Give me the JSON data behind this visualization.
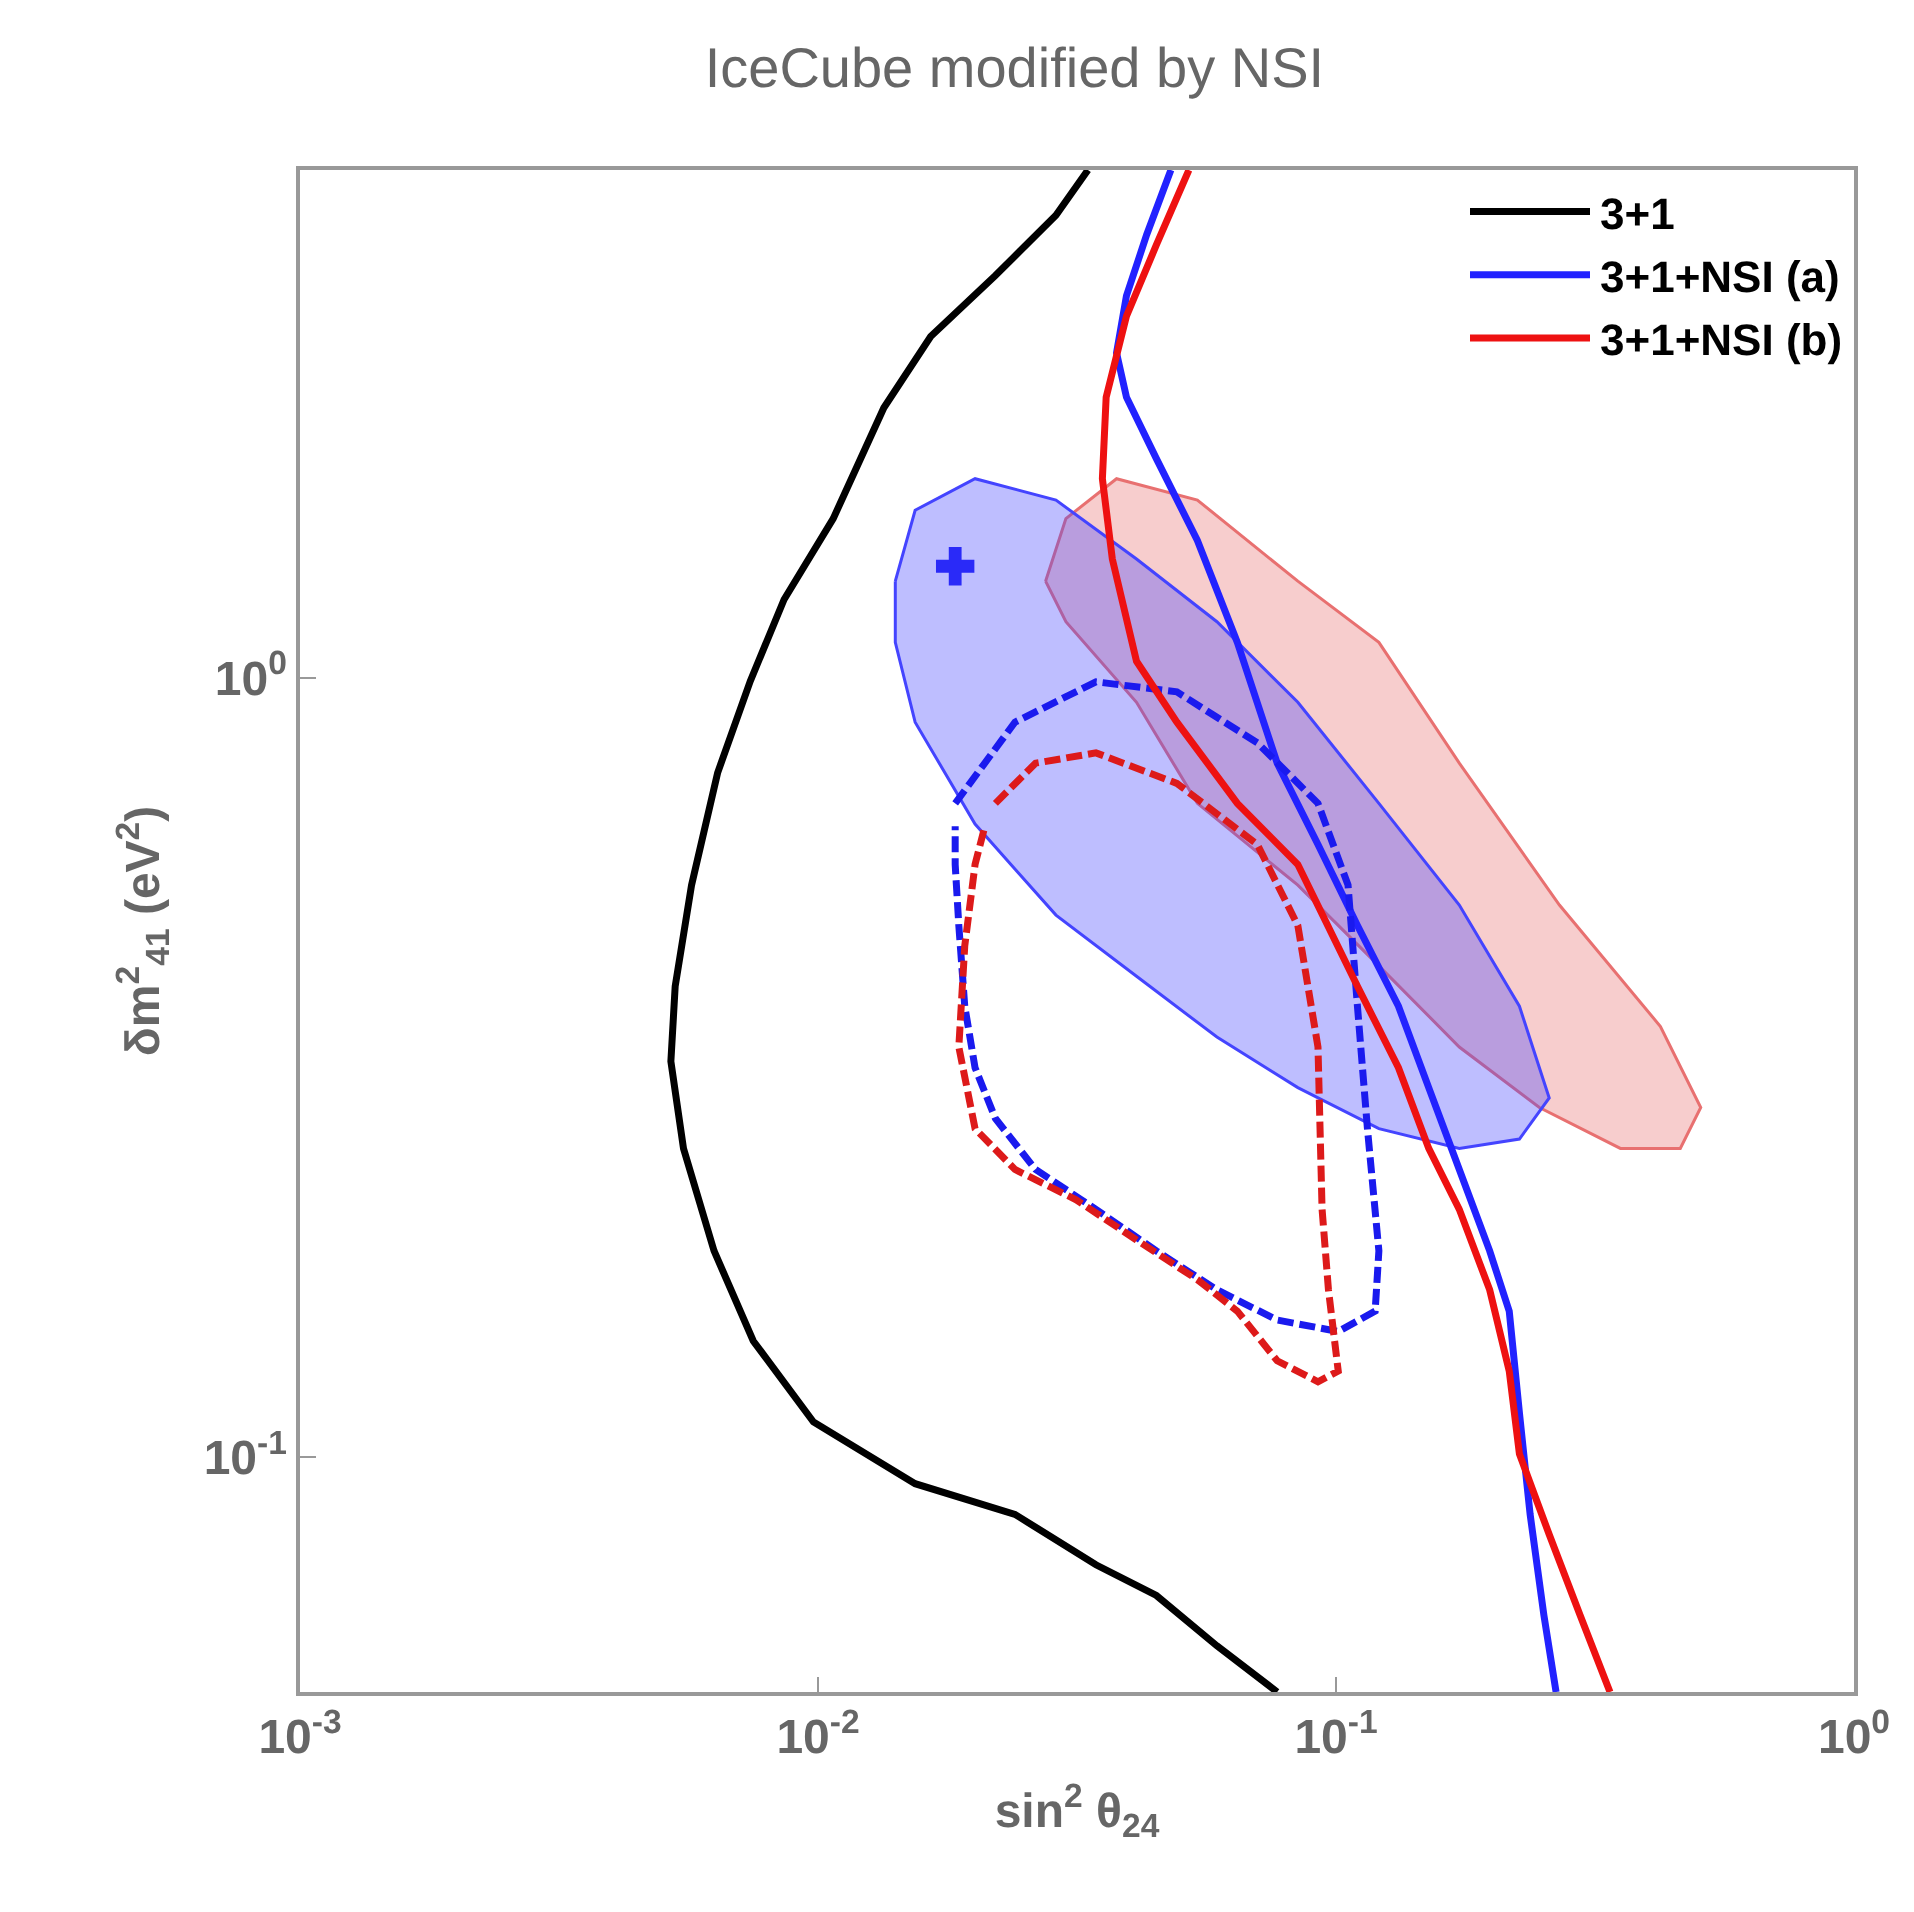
{
  "chart_data": {
    "type": "line",
    "title": "IceCube modified by NSI",
    "xlabel": "sin$^{2}$ θ$_{24}$",
    "ylabel": "δm$^{2}$$_{41}$ (eV$^{2}$)",
    "log": "xy",
    "legend": "top right",
    "xlim": [
      0.001,
      1
    ],
    "ylim": [
      0.05,
      4.48
    ],
    "xticks": [
      {
        "value": 0.001,
        "label": "10$^{-3}$"
      },
      {
        "value": 0.01,
        "label": "10$^{-2}$"
      },
      {
        "value": 0.1,
        "label": "10$^{-1}$"
      },
      {
        "value": 1,
        "label": "10$^{0}$"
      }
    ],
    "yticks": [
      {
        "value": 0.1,
        "label": "10$^{-1}$"
      },
      {
        "value": 1,
        "label": "10$^{0}$"
      }
    ],
    "series": [
      {
        "type": "area",
        "color": "#e87070",
        "x": [
          0.0275,
          0.0301,
          0.0377,
          0.054,
          0.0844,
          0.121,
          0.173,
          0.27,
          0.423,
          0.506,
          0.462,
          0.354,
          0.247,
          0.173,
          0.121,
          0.0844,
          0.054,
          0.0412,
          0.0301,
          0.0275
        ],
        "values": [
          1.33,
          1.6,
          1.8,
          1.69,
          1.33,
          1.11,
          0.777,
          0.511,
          0.357,
          0.281,
          0.249,
          0.249,
          0.281,
          0.336,
          0.427,
          0.542,
          0.69,
          0.93,
          1.18,
          1.33
        ]
      },
      {
        "type": "area",
        "color": "#4444ff",
        "x": [
          0.0141,
          0.0154,
          0.0201,
          0.0288,
          0.0412,
          0.0589,
          0.0844,
          0.121,
          0.173,
          0.226,
          0.258,
          0.226,
          0.173,
          0.121,
          0.0844,
          0.0589,
          0.0412,
          0.0288,
          0.0201,
          0.0154,
          0.0141,
          0.0141
        ],
        "values": [
          1.33,
          1.64,
          1.8,
          1.69,
          1.42,
          1.18,
          0.93,
          0.69,
          0.511,
          0.379,
          0.289,
          0.256,
          0.249,
          0.264,
          0.298,
          0.346,
          0.414,
          0.496,
          0.649,
          0.877,
          1.11,
          1.33
        ]
      },
      {
        "name": "3+1",
        "color": "#000000",
        "line_style": "solid",
        "x": [
          0.0332,
          0.0288,
          0.022,
          0.0165,
          0.0134,
          0.0107,
          0.0086,
          0.0074,
          0.0064,
          0.0057,
          0.0053,
          0.0052,
          0.0055,
          0.0063,
          0.0075,
          0.0098,
          0.0154,
          0.024,
          0.0344,
          0.045,
          0.0589,
          0.077
        ],
        "values": [
          4.48,
          3.92,
          3.28,
          2.74,
          2.22,
          1.6,
          1.26,
          0.99,
          0.755,
          0.542,
          0.402,
          0.322,
          0.249,
          0.184,
          0.141,
          0.111,
          0.0925,
          0.0845,
          0.0728,
          0.0665,
          0.0573,
          0.05
        ]
      },
      {
        "name": "3+1+NSI (a)",
        "color": "#2222ff",
        "line_style": "solid",
        "x": [
          0.048,
          0.0431,
          0.0394,
          0.0377,
          0.0394,
          0.045,
          0.054,
          0.0645,
          0.077,
          0.0923,
          0.11,
          0.132,
          0.151,
          0.173,
          0.198,
          0.216,
          0.226,
          0.237,
          0.252,
          0.266
        ],
        "values": [
          4.48,
          3.7,
          3.09,
          2.61,
          2.29,
          1.91,
          1.5,
          1.11,
          0.777,
          0.611,
          0.481,
          0.379,
          0.298,
          0.234,
          0.184,
          0.154,
          0.114,
          0.0845,
          0.0627,
          0.05
        ]
      },
      {
        "color": "#1a1aee",
        "line_style": "dashed",
        "x": [
          0.0184,
          0.024,
          0.0344,
          0.0493,
          0.0705,
          0.0923,
          0.1055,
          0.11,
          0.115,
          0.121,
          0.119,
          0.101,
          0.077,
          0.0589,
          0.045,
          0.0344,
          0.0263,
          0.022,
          0.0201,
          0.0192,
          0.0187,
          0.0184,
          0.0184
        ],
        "values": [
          0.69,
          0.877,
          0.988,
          0.959,
          0.825,
          0.69,
          0.542,
          0.379,
          0.264,
          0.184,
          0.154,
          0.145,
          0.15,
          0.164,
          0.184,
          0.208,
          0.234,
          0.272,
          0.316,
          0.379,
          0.481,
          0.576,
          0.645
        ]
      },
      {
        "name": "3+1+NSI (b)",
        "color": "#ee1111",
        "line_style": "solid",
        "x": [
          0.052,
          0.045,
          0.0394,
          0.036,
          0.0354,
          0.037,
          0.0412,
          0.0493,
          0.0645,
          0.0844,
          0.11,
          0.132,
          0.151,
          0.173,
          0.198,
          0.216,
          0.226,
          0.258,
          0.296,
          0.338
        ],
        "values": [
          4.48,
          3.59,
          2.91,
          2.29,
          1.8,
          1.42,
          1.05,
          0.877,
          0.69,
          0.576,
          0.402,
          0.316,
          0.249,
          0.208,
          0.164,
          0.129,
          0.101,
          0.0796,
          0.0627,
          0.05
        ]
      },
      {
        "color": "#dd1a1a",
        "line_style": "dashed",
        "x": [
          0.022,
          0.0263,
          0.0344,
          0.0493,
          0.0705,
          0.0844,
          0.0923,
          0.094,
          0.0967,
          0.101,
          0.0923,
          0.077,
          0.0645,
          0.054,
          0.0412,
          0.0315,
          0.024,
          0.0201,
          0.0187,
          0.0192,
          0.0201,
          0.021
        ],
        "values": [
          0.69,
          0.777,
          0.801,
          0.732,
          0.611,
          0.481,
          0.336,
          0.208,
          0.164,
          0.129,
          0.125,
          0.133,
          0.154,
          0.169,
          0.19,
          0.214,
          0.234,
          0.264,
          0.336,
          0.453,
          0.576,
          0.645
        ]
      },
      {
        "type": "scatter",
        "color": "#2a2af8",
        "marker": "cross",
        "x": [
          0.0184
        ],
        "values": [
          1.39
        ]
      }
    ]
  }
}
